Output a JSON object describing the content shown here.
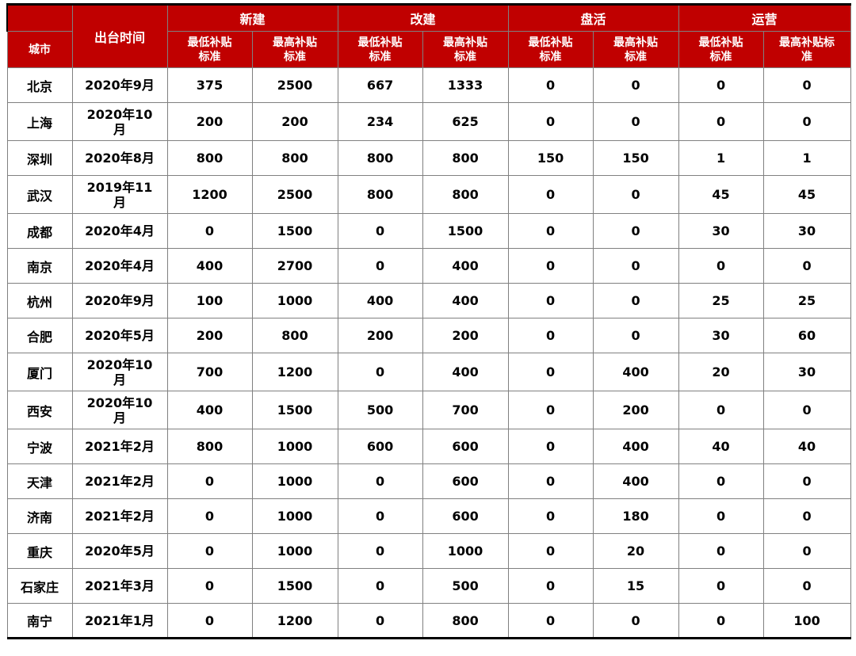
{
  "colors": {
    "header_bg": "#c00000",
    "header_text": "#ffffff",
    "body_text": "#000000",
    "grid_border": "#808080",
    "frame_border": "#000000"
  },
  "chart_data": {
    "type": "table",
    "city_header": "城市",
    "date_header": "出台时间",
    "groups": [
      "新建",
      "改建",
      "盘活",
      "运营"
    ],
    "sub_headers": [
      "最低补贴\n标准",
      "最高补贴\n标准",
      "最低补贴\n标准",
      "最高补贴\n标准",
      "最低补贴\n标准",
      "最高补贴\n标准",
      "最低补贴\n标准",
      "最高补贴标\n准"
    ],
    "rows": [
      {
        "city": "北京",
        "date": "2020年9月",
        "values": [
          375,
          2500,
          667,
          1333,
          0,
          0,
          0,
          0
        ]
      },
      {
        "city": "上海",
        "date": "2020年10\n月",
        "values": [
          200,
          200,
          234,
          625,
          0,
          0,
          0,
          0
        ]
      },
      {
        "city": "深圳",
        "date": "2020年8月",
        "values": [
          800,
          800,
          800,
          800,
          150,
          150,
          1,
          1
        ]
      },
      {
        "city": "武汉",
        "date": "2019年11\n月",
        "values": [
          1200,
          2500,
          800,
          800,
          0,
          0,
          45,
          45
        ]
      },
      {
        "city": "成都",
        "date": "2020年4月",
        "values": [
          0,
          1500,
          0,
          1500,
          0,
          0,
          30,
          30
        ]
      },
      {
        "city": "南京",
        "date": "2020年4月",
        "values": [
          400,
          2700,
          0,
          400,
          0,
          0,
          0,
          0
        ]
      },
      {
        "city": "杭州",
        "date": "2020年9月",
        "values": [
          100,
          1000,
          400,
          400,
          0,
          0,
          25,
          25
        ]
      },
      {
        "city": "合肥",
        "date": "2020年5月",
        "values": [
          200,
          800,
          200,
          200,
          0,
          0,
          30,
          60
        ]
      },
      {
        "city": "厦门",
        "date": "2020年10\n月",
        "values": [
          700,
          1200,
          0,
          400,
          0,
          400,
          20,
          30
        ]
      },
      {
        "city": "西安",
        "date": "2020年10\n月",
        "values": [
          400,
          1500,
          500,
          700,
          0,
          200,
          0,
          0
        ]
      },
      {
        "city": "宁波",
        "date": "2021年2月",
        "values": [
          800,
          1000,
          600,
          600,
          0,
          400,
          40,
          40
        ]
      },
      {
        "city": "天津",
        "date": "2021年2月",
        "values": [
          0,
          1000,
          0,
          600,
          0,
          400,
          0,
          0
        ]
      },
      {
        "city": "济南",
        "date": "2021年2月",
        "values": [
          0,
          1000,
          0,
          600,
          0,
          180,
          0,
          0
        ]
      },
      {
        "city": "重庆",
        "date": "2020年5月",
        "values": [
          0,
          1000,
          0,
          1000,
          0,
          20,
          0,
          0
        ]
      },
      {
        "city": "石家庄",
        "date": "2021年3月",
        "values": [
          0,
          1500,
          0,
          500,
          0,
          15,
          0,
          0
        ]
      },
      {
        "city": "南宁",
        "date": "2021年1月",
        "values": [
          0,
          1200,
          0,
          800,
          0,
          0,
          0,
          100
        ]
      }
    ]
  }
}
